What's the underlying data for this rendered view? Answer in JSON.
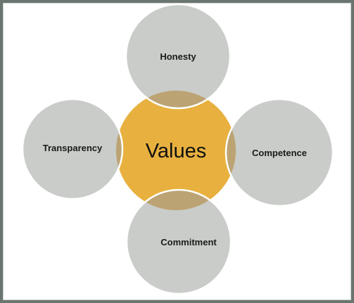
{
  "diagram": {
    "center": {
      "label": "Values",
      "color": "#e8b13f"
    },
    "satellite_color": "#c9ccc9",
    "overlap_color": "#bba374",
    "frame_color": "#6b7570",
    "nodes": [
      {
        "id": "top",
        "label": "Honesty"
      },
      {
        "id": "right",
        "label": "Competence"
      },
      {
        "id": "bottom",
        "label": "Commitment"
      },
      {
        "id": "left",
        "label": "Transparency"
      }
    ]
  }
}
